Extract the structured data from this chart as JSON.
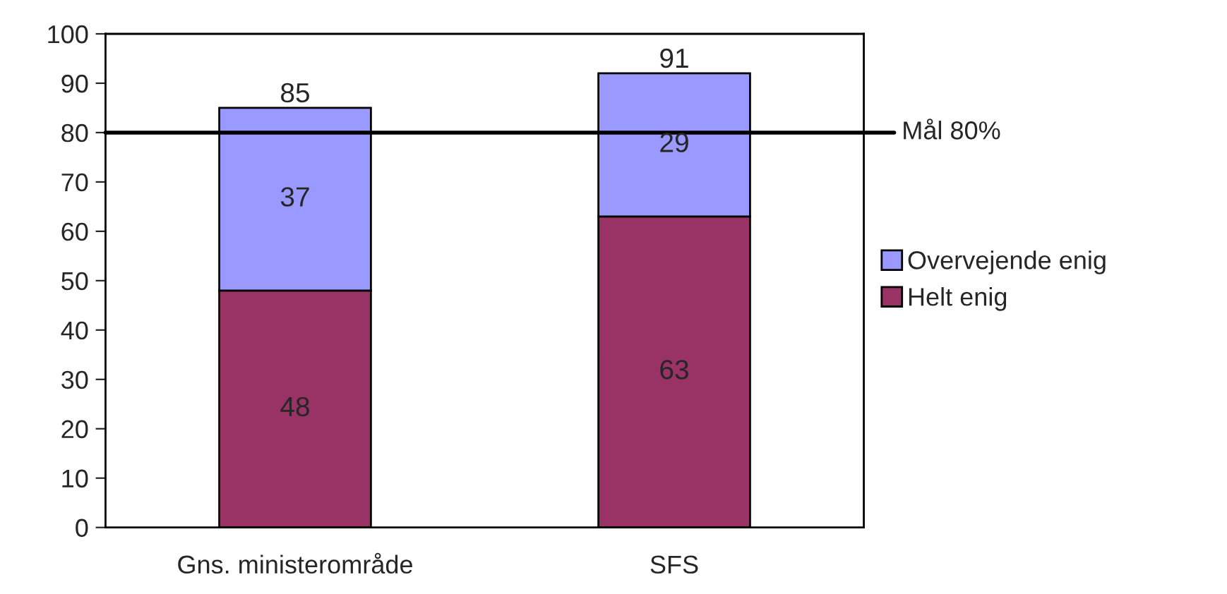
{
  "chart_data": {
    "type": "bar",
    "stacked": true,
    "categories": [
      "Gns. ministerområde",
      "SFS"
    ],
    "series": [
      {
        "name": "Helt enig",
        "color": "#993366",
        "values": [
          48,
          63
        ]
      },
      {
        "name": "Overvejende enig",
        "color": "#9999ff",
        "values": [
          37,
          29
        ]
      }
    ],
    "data_labels": true,
    "totals": [
      "85",
      "91"
    ],
    "ylim": [
      0,
      100
    ],
    "yticks": [
      0,
      10,
      20,
      30,
      40,
      50,
      60,
      70,
      80,
      90,
      100
    ],
    "ref_lines": [
      {
        "axis": "y",
        "value": 80,
        "label": "Mål 80%",
        "color": "#000000"
      }
    ],
    "grid": false,
    "legend": "right"
  }
}
